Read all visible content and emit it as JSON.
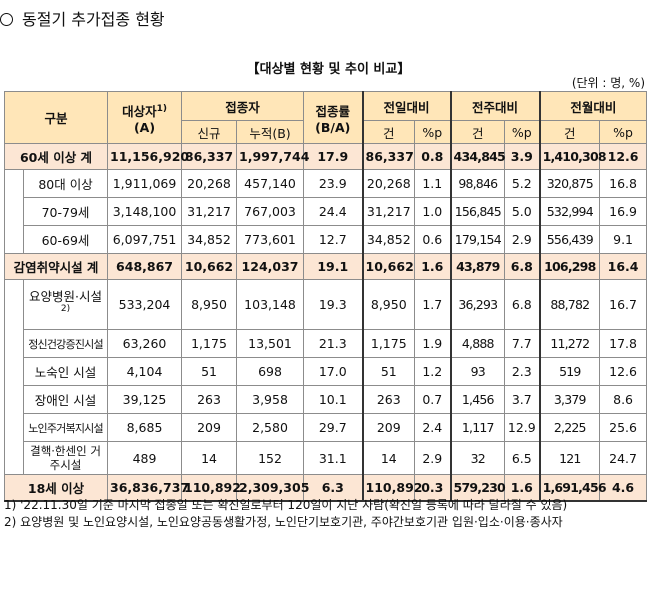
{
  "title": "동절기 추가접종 현황",
  "subtitle": "【대상별 현황 및 추이 비교】",
  "unit": "(단위 : 명, %)",
  "header": {
    "group": "구분",
    "target": "대상자",
    "target_sup": "1)",
    "target_sub": "(A)",
    "vacc": "접종자",
    "new": "신규",
    "cum": "누적(B)",
    "rate": "접종률",
    "rate_sub": "(B/A)",
    "prev_day": "전일대비",
    "prev_week": "전주대비",
    "prev_month": "전월대비",
    "cnt": "건",
    "pp": "%p"
  },
  "rows": [
    {
      "label": "60세 이상 계",
      "target": "11,156,920",
      "new": "86,337",
      "cum": "1,997,744",
      "rate": "17.9",
      "d_cnt": "86,337",
      "d_pp": "0.8",
      "w_cnt": "434,845",
      "w_pp": "3.9",
      "m_cnt": "1,410,308",
      "m_pp": "12.6"
    },
    {
      "label": "80대 이상",
      "target": "1,911,069",
      "new": "20,268",
      "cum": "457,140",
      "rate": "23.9",
      "d_cnt": "20,268",
      "d_pp": "1.1",
      "w_cnt": "98,846",
      "w_pp": "5.2",
      "m_cnt": "320,875",
      "m_pp": "16.8"
    },
    {
      "label": "70-79세",
      "target": "3,148,100",
      "new": "31,217",
      "cum": "767,003",
      "rate": "24.4",
      "d_cnt": "31,217",
      "d_pp": "1.0",
      "w_cnt": "156,845",
      "w_pp": "5.0",
      "m_cnt": "532,994",
      "m_pp": "16.9"
    },
    {
      "label": "60-69세",
      "target": "6,097,751",
      "new": "34,852",
      "cum": "773,601",
      "rate": "12.7",
      "d_cnt": "34,852",
      "d_pp": "0.6",
      "w_cnt": "179,154",
      "w_pp": "2.9",
      "m_cnt": "556,439",
      "m_pp": "9.1"
    },
    {
      "label": "감염취약시설 계",
      "target": "648,867",
      "new": "10,662",
      "cum": "124,037",
      "rate": "19.1",
      "d_cnt": "10,662",
      "d_pp": "1.6",
      "w_cnt": "43,879",
      "w_pp": "6.8",
      "m_cnt": "106,298",
      "m_pp": "16.4"
    },
    {
      "label": "요양병원·시설",
      "label_sup": "2)",
      "target": "533,204",
      "new": "8,950",
      "cum": "103,148",
      "rate": "19.3",
      "d_cnt": "8,950",
      "d_pp": "1.7",
      "w_cnt": "36,293",
      "w_pp": "6.8",
      "m_cnt": "88,782",
      "m_pp": "16.7"
    },
    {
      "label": "정신건강증진시설",
      "target": "63,260",
      "new": "1,175",
      "cum": "13,501",
      "rate": "21.3",
      "d_cnt": "1,175",
      "d_pp": "1.9",
      "w_cnt": "4,888",
      "w_pp": "7.7",
      "m_cnt": "11,272",
      "m_pp": "17.8"
    },
    {
      "label": "노숙인 시설",
      "target": "4,104",
      "new": "51",
      "cum": "698",
      "rate": "17.0",
      "d_cnt": "51",
      "d_pp": "1.2",
      "w_cnt": "93",
      "w_pp": "2.3",
      "m_cnt": "519",
      "m_pp": "12.6"
    },
    {
      "label": "장애인 시설",
      "target": "39,125",
      "new": "263",
      "cum": "3,958",
      "rate": "10.1",
      "d_cnt": "263",
      "d_pp": "0.7",
      "w_cnt": "1,456",
      "w_pp": "3.7",
      "m_cnt": "3,379",
      "m_pp": "8.6"
    },
    {
      "label": "노인주거복지시설",
      "target": "8,685",
      "new": "209",
      "cum": "2,580",
      "rate": "29.7",
      "d_cnt": "209",
      "d_pp": "2.4",
      "w_cnt": "1,117",
      "w_pp": "12.9",
      "m_cnt": "2,225",
      "m_pp": "25.6"
    },
    {
      "label": "결핵·한센인 거주시설",
      "target": "489",
      "new": "14",
      "cum": "152",
      "rate": "31.1",
      "d_cnt": "14",
      "d_pp": "2.9",
      "w_cnt": "32",
      "w_pp": "6.5",
      "m_cnt": "121",
      "m_pp": "24.7"
    },
    {
      "label": "18세 이상",
      "target": "36,836,737",
      "new": "110,892",
      "cum": "2,309,305",
      "rate": "6.3",
      "d_cnt": "110,892",
      "d_pp": "0.3",
      "w_cnt": "579,230",
      "w_pp": "1.6",
      "m_cnt": "1,691,456",
      "m_pp": "4.6"
    }
  ],
  "notes": [
    "1) '22.11.30일 기준 마지막 접종일 또는 확진일로부터 120일이 지난 사람(확진일 등록에 따라 달라질 수 있음)",
    "2) 요양병원 및 노인요양시설, 노인요양공동생활가정, 노인단기보호기관, 주야간보호기관 입원·입소·이용·종사자"
  ]
}
